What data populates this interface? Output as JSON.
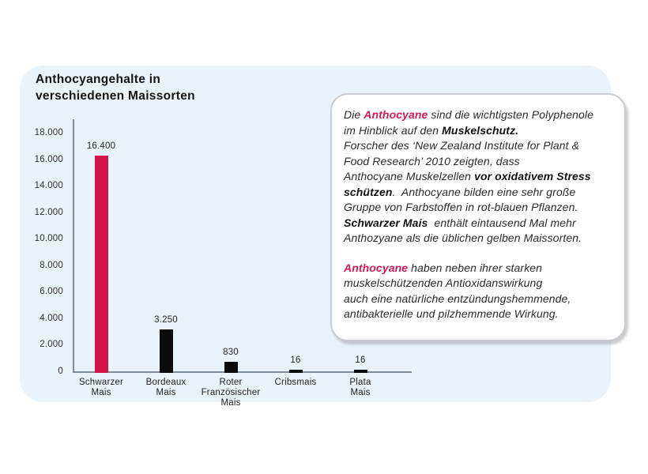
{
  "colors": {
    "accent_red": "#d31a55",
    "bar_red": "#d11347",
    "bar_black": "#0b0b0b",
    "panel_blue": "#ebf3fa",
    "text_dark": "#1c1c1c",
    "axis_gray": "#7e8c99",
    "box_border": "#c9ccd1"
  },
  "chart": {
    "title_line1": "Anthocyangehalte in",
    "title_line2": "verschiedenen Maissorten"
  },
  "chart_data": {
    "type": "bar",
    "title": "Anthocyangehalte in verschiedenen Maissorten",
    "categories": [
      "Schwarzer Mais",
      "Bordeaux Mais",
      "Roter Französischer Mais",
      "Cribsmais",
      "Plata Mais"
    ],
    "category_label_lines": [
      [
        "Schwarzer",
        "Mais"
      ],
      [
        "Bordeaux",
        "Mais"
      ],
      [
        "Roter",
        "Französischer",
        "Mais"
      ],
      [
        "Cribsmais"
      ],
      [
        "Plata",
        "Mais"
      ]
    ],
    "values": [
      16400,
      3250,
      830,
      16,
      16
    ],
    "value_labels": [
      "16.400",
      "3.250",
      "830",
      "16",
      "16"
    ],
    "bar_colors": [
      "#d11347",
      "#0b0b0b",
      "#0b0b0b",
      "#0b0b0b",
      "#0b0b0b"
    ],
    "xlabel": "",
    "ylabel": "",
    "ylim": [
      0,
      18000
    ],
    "ytick_interval": 2000,
    "ytick_labels": [
      "18.000",
      "16.000",
      "14.000",
      "12.000",
      "10.000",
      "8.000",
      "6.000",
      "4.000",
      "2.000",
      "0"
    ],
    "grid": false,
    "legend": false
  },
  "infobox": {
    "paragraphs": [
      {
        "lines": [
          [
            {
              "t": "Die ",
              "s": "n"
            },
            {
              "t": "Anthocyane",
              "s": "rb"
            },
            {
              "t": " sind die wichtigsten Polyphenole",
              "s": "n"
            }
          ],
          [
            {
              "t": "im Hinblick auf den ",
              "s": "n"
            },
            {
              "t": "Muskelschutz.",
              "s": "b"
            }
          ],
          [
            {
              "t": "Forscher des ‘New Zealand Institute for Plant &",
              "s": "n"
            }
          ],
          [
            {
              "t": "Food Research’ 2010 zeigten, dass",
              "s": "n"
            }
          ],
          [
            {
              "t": "Anthocyane Muskelzellen ",
              "s": "n"
            },
            {
              "t": "vor oxidativem Stress",
              "s": "b"
            }
          ],
          [
            {
              "t": "schützen",
              "s": "b"
            },
            {
              "t": ".  Anthocyane bilden eine sehr große",
              "s": "n"
            }
          ],
          [
            {
              "t": "Gruppe von Farbstoffen in rot-blauen Pflanzen.",
              "s": "n"
            }
          ],
          [
            {
              "t": "Schwarzer Mais",
              "s": "b"
            },
            {
              "t": "  enthält eintausend Mal mehr",
              "s": "n"
            }
          ],
          [
            {
              "t": "Anthozyane als die üblichen gelben Maissorten.",
              "s": "n"
            }
          ]
        ]
      },
      {
        "lines": [
          [
            {
              "t": "Anthocyane",
              "s": "rb"
            },
            {
              "t": " haben neben ihrer starken",
              "s": "n"
            }
          ],
          [
            {
              "t": "muskelschützenden Antioxidanswirkung",
              "s": "n"
            }
          ],
          [
            {
              "t": "auch eine natürliche entzündungshemmende,",
              "s": "n"
            }
          ],
          [
            {
              "t": "antibakterielle und pilzhemmende Wirkung.",
              "s": "n"
            }
          ]
        ]
      }
    ]
  }
}
